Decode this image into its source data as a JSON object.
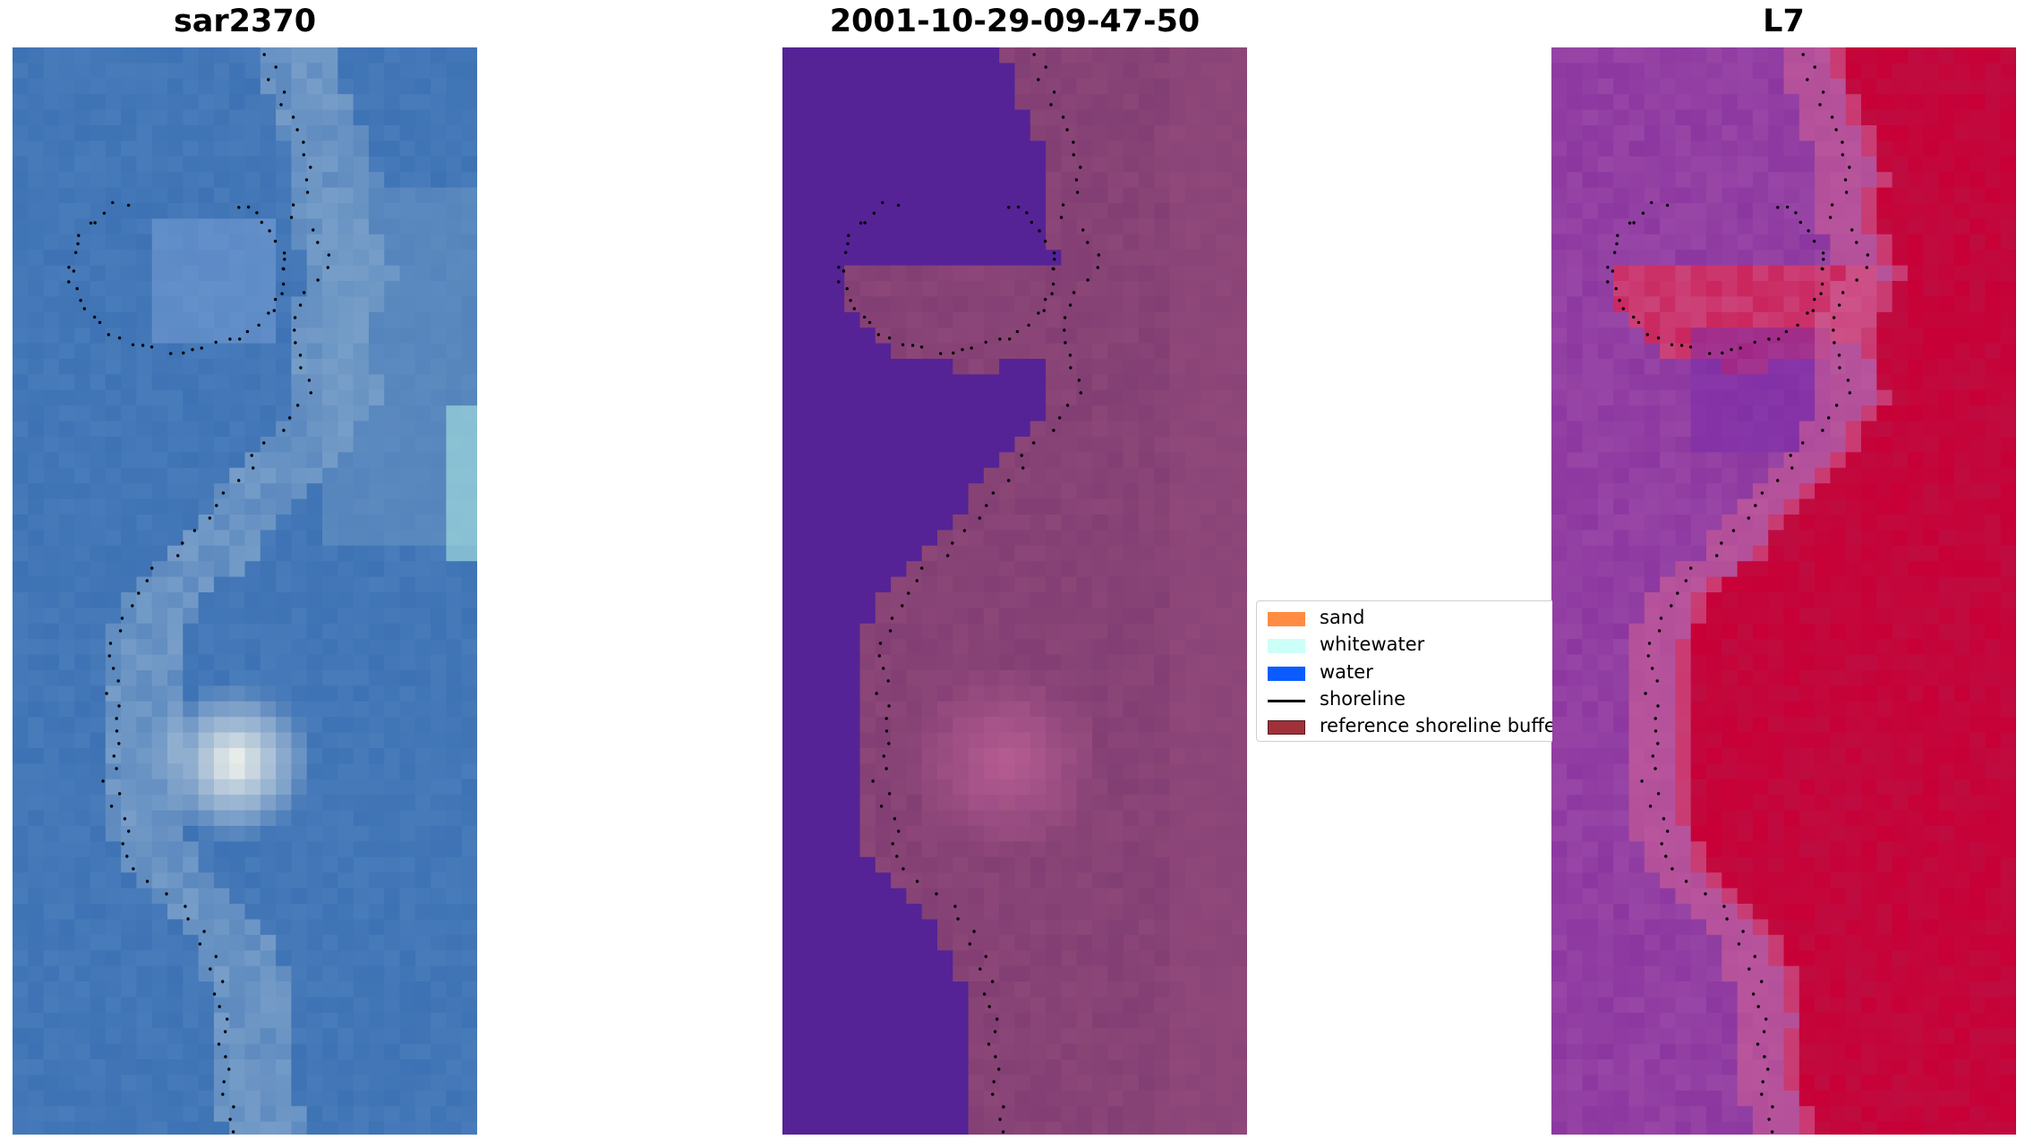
{
  "panels": [
    {
      "title": "sar2370",
      "style": "rgb"
    },
    {
      "title": "2001-10-29-09-47-50",
      "style": "classified"
    },
    {
      "title": "L7",
      "style": "index"
    }
  ],
  "legend": {
    "items": [
      {
        "label": "sand",
        "kind": "patch",
        "color": "#ff8c42"
      },
      {
        "label": "whitewater",
        "kind": "patch",
        "color": "#ccfff7"
      },
      {
        "label": "water",
        "kind": "patch",
        "color": "#0a5cff"
      },
      {
        "label": "shoreline",
        "kind": "line",
        "color": "#000000"
      },
      {
        "label": "reference shoreline buffer",
        "kind": "patch",
        "color": "#a0313a"
      }
    ]
  },
  "colors": {
    "water_class": "#552396",
    "rgb_water": "#3d72b4",
    "rgb_whitewater": "#fffdf0",
    "index_sand": "#c8003a",
    "index_water": "#8a3aa8"
  }
}
